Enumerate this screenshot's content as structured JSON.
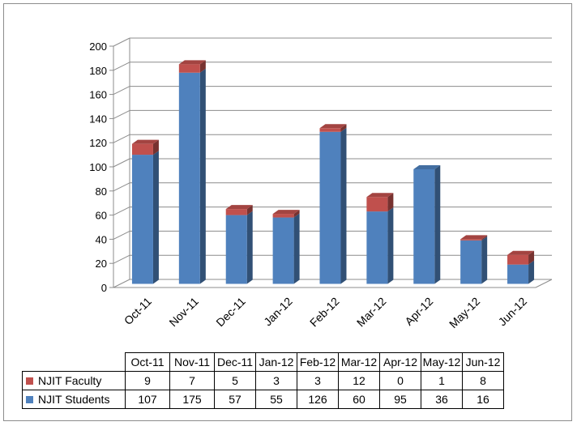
{
  "chart_data": {
    "type": "bar",
    "stacked": true,
    "three_d": true,
    "categories": [
      "Oct-11",
      "Nov-11",
      "Dec-11",
      "Jan-12",
      "Feb-12",
      "Mar-12",
      "Apr-12",
      "May-12",
      "Jun-12"
    ],
    "series": [
      {
        "name": "NJIT Students",
        "color": "#4f81bd",
        "values": [
          107,
          175,
          57,
          55,
          126,
          60,
          95,
          36,
          16
        ]
      },
      {
        "name": "NJIT Faculty",
        "color": "#c0504d",
        "values": [
          9,
          7,
          5,
          3,
          3,
          12,
          0,
          1,
          8
        ]
      }
    ],
    "yticks": [
      "200",
      "180",
      "160",
      "140",
      "120",
      "100",
      "80",
      "60",
      "40",
      "20",
      "0"
    ],
    "ylim": [
      0,
      200
    ],
    "grid": true,
    "legend": "data-table below chart"
  },
  "table": {
    "rows": [
      {
        "label": "NJIT Faculty",
        "color": "#c0504d",
        "values": [
          "9",
          "7",
          "5",
          "3",
          "3",
          "12",
          "0",
          "1",
          "8"
        ]
      },
      {
        "label": "NJIT Students",
        "color": "#4f81bd",
        "values": [
          "107",
          "175",
          "57",
          "55",
          "126",
          "60",
          "95",
          "36",
          "16"
        ]
      }
    ]
  }
}
